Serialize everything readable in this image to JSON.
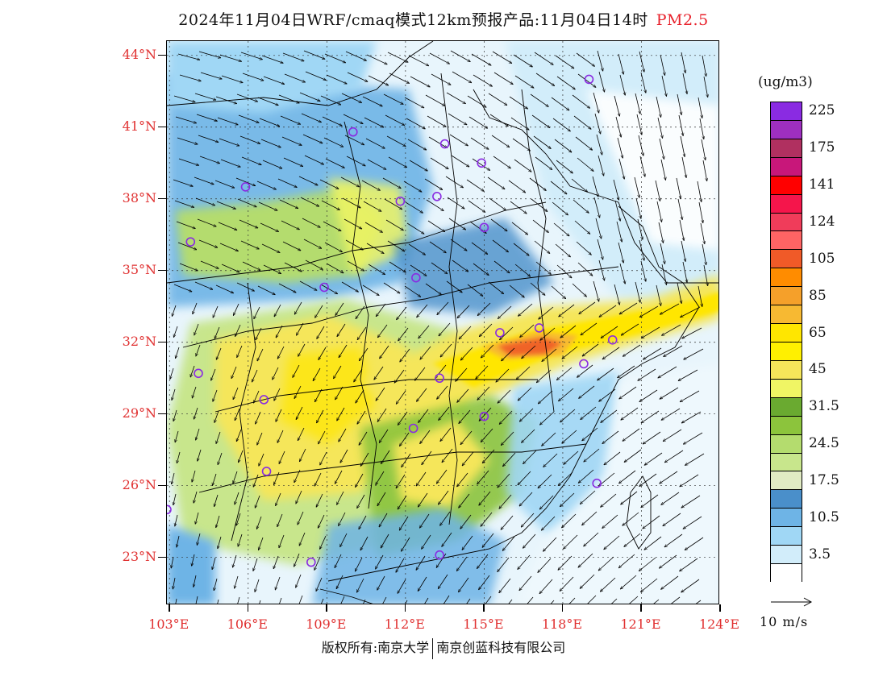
{
  "title": {
    "main": "2024年11月04日WRF/cmaq模式12km预报产品:11月04日14时",
    "pollutant": "PM2.5"
  },
  "map": {
    "lat_labels": [
      "44°N",
      "41°N",
      "38°N",
      "35°N",
      "32°N",
      "29°N",
      "26°N",
      "23°N"
    ],
    "lon_labels": [
      "103°E",
      "106°E",
      "109°E",
      "112°E",
      "115°E",
      "118°E",
      "121°E",
      "124°E"
    ],
    "extent": {
      "lon_min": 102.9,
      "lon_max": 124.0,
      "lat_min": 21.0,
      "lat_max": 44.6
    },
    "colors": {
      "frame": "#000000",
      "axis_label": "#e03030",
      "station_marker": "#8a2be2",
      "wind_arrow": "#000000"
    }
  },
  "legend": {
    "unit": "(ug/m3)",
    "levels": [
      {
        "label": "225",
        "color": "#8a2be2"
      },
      {
        "label": "",
        "color": "#9e2fc0"
      },
      {
        "label": "175",
        "color": "#b03060"
      },
      {
        "label": "",
        "color": "#c8177a"
      },
      {
        "label": "141",
        "color": "#ff0000"
      },
      {
        "label": "",
        "color": "#f5154b"
      },
      {
        "label": "124",
        "color": "#f03c5a"
      },
      {
        "label": "",
        "color": "#ff6464"
      },
      {
        "label": "105",
        "color": "#f05a28"
      },
      {
        "label": "",
        "color": "#ff8c00"
      },
      {
        "label": "85",
        "color": "#f5a02a"
      },
      {
        "label": "",
        "color": "#f7b932"
      },
      {
        "label": "65",
        "color": "#ffe600"
      },
      {
        "label": "",
        "color": "#fff000"
      },
      {
        "label": "45",
        "color": "#f5e65a"
      },
      {
        "label": "",
        "color": "#f0f564"
      },
      {
        "label": "31.5",
        "color": "#6aaa30"
      },
      {
        "label": "",
        "color": "#8cc43c"
      },
      {
        "label": "24.5",
        "color": "#b4dc6e"
      },
      {
        "label": "",
        "color": "#c8e68c"
      },
      {
        "label": "17.5",
        "color": "#e1ebc3"
      },
      {
        "label": "",
        "color": "#4a8fca"
      },
      {
        "label": "10.5",
        "color": "#6eb4e6"
      },
      {
        "label": "",
        "color": "#a0d7f5"
      },
      {
        "label": "3.5",
        "color": "#d2edfa"
      },
      {
        "label": "",
        "color": "#ffffff"
      }
    ]
  },
  "wind_reference": {
    "label": "10 m/s"
  },
  "footer": {
    "left": "版权所有:南京大学",
    "right": "南京创蓝科技有限公司"
  }
}
